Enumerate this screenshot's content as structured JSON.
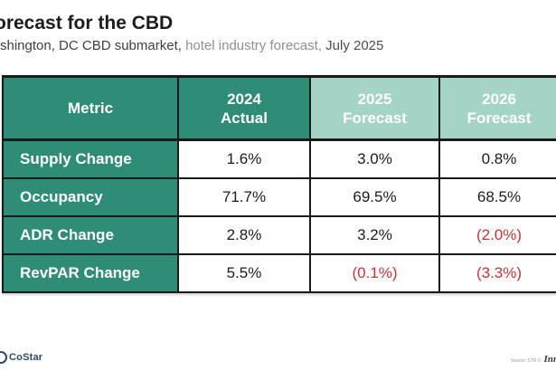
{
  "page": {
    "title": "orecast for the CBD",
    "subtitle": {
      "part1": "shington, DC CBD submarket, ",
      "part2": "hotel industry forecast, ",
      "part3": "July 2025"
    }
  },
  "table": {
    "columns": [
      {
        "line1": "Metric",
        "line2": "",
        "theme": "dark"
      },
      {
        "line1": "2024",
        "line2": "Actual",
        "theme": "dark"
      },
      {
        "line1": "2025",
        "line2": "Forecast",
        "theme": "light"
      },
      {
        "line1": "2026",
        "line2": "Forecast",
        "theme": "light"
      }
    ],
    "rows": [
      {
        "label": "Supply Change",
        "values": [
          {
            "text": "1.6%",
            "negative": false
          },
          {
            "text": "3.0%",
            "negative": false
          },
          {
            "text": "0.8%",
            "negative": false
          }
        ]
      },
      {
        "label": "Occupancy",
        "values": [
          {
            "text": "71.7%",
            "negative": false
          },
          {
            "text": "69.5%",
            "negative": false
          },
          {
            "text": "68.5%",
            "negative": false
          }
        ]
      },
      {
        "label": "ADR Change",
        "values": [
          {
            "text": "2.8%",
            "negative": false
          },
          {
            "text": "3.2%",
            "negative": false
          },
          {
            "text": "(2.0%)",
            "negative": true
          }
        ]
      },
      {
        "label": "RevPAR Change",
        "values": [
          {
            "text": "5.5%",
            "negative": false
          },
          {
            "text": "(0.1%)",
            "negative": true
          },
          {
            "text": "(3.3%)",
            "negative": true
          }
        ]
      }
    ]
  },
  "footer": {
    "costar_label": "CoStar",
    "source_text": "Source: STR ©",
    "partner_logo_text": "Inn"
  },
  "colors": {
    "dark_teal": "#2e8c77",
    "light_teal": "#a4d4c6",
    "border": "#1a1a1a",
    "negative_red": "#cc3333",
    "costar_navy": "#2c4a66"
  },
  "chart_data": {
    "type": "table",
    "title": "orecast for the CBD",
    "subtitle": "shington, DC CBD submarket, hotel industry forecast, July 2025",
    "columns": [
      "Metric",
      "2024 Actual",
      "2025 Forecast",
      "2026 Forecast"
    ],
    "rows": [
      [
        "Supply Change",
        "1.6%",
        "3.0%",
        "0.8%"
      ],
      [
        "Occupancy",
        "71.7%",
        "69.5%",
        "68.5%"
      ],
      [
        "ADR Change",
        "2.8%",
        "3.2%",
        "(2.0%)"
      ],
      [
        "RevPAR Change",
        "5.5%",
        "(0.1%)",
        "(3.3%)"
      ]
    ],
    "notes": "Values in parentheses are negative and shown in red"
  }
}
